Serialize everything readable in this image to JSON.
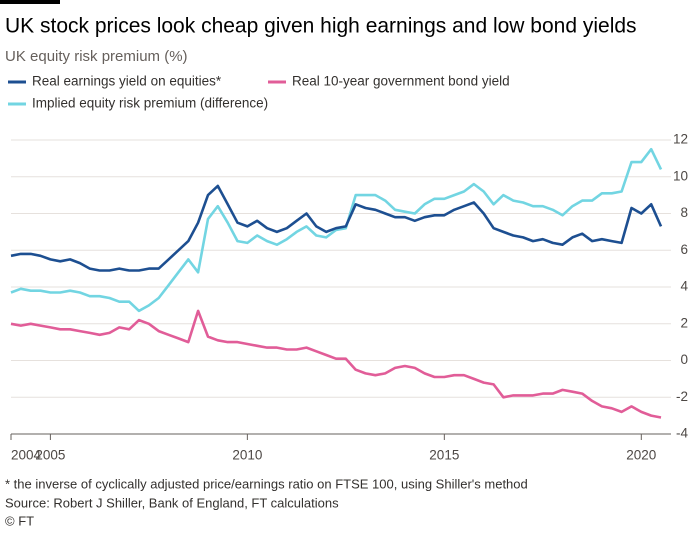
{
  "chart_data": {
    "type": "line",
    "title": "UK stock prices look cheap given high earnings and low bond yields",
    "subtitle": "UK equity risk premium (%)",
    "footnote": "* the inverse of cyclically adjusted price/earnings ratio on FTSE 100, using Shiller's method",
    "source": "Source: Robert J Shiller, Bank of England, FT calculations",
    "credit": "© FT",
    "legend": "top-left",
    "grid": true,
    "xlim": [
      2004,
      2020.5
    ],
    "xticks": [
      2004,
      2005,
      2010,
      2015,
      2020
    ],
    "ylim": [
      -4,
      12
    ],
    "yticks": [
      -4,
      -2,
      0,
      2,
      4,
      6,
      8,
      10,
      12
    ],
    "x": [
      2004,
      2004.25,
      2004.5,
      2004.75,
      2005,
      2005.25,
      2005.5,
      2005.75,
      2006,
      2006.25,
      2006.5,
      2006.75,
      2007,
      2007.25,
      2007.5,
      2007.75,
      2008,
      2008.25,
      2008.5,
      2008.75,
      2009,
      2009.25,
      2009.5,
      2009.75,
      2010,
      2010.25,
      2010.5,
      2010.75,
      2011,
      2011.25,
      2011.5,
      2011.75,
      2012,
      2012.25,
      2012.5,
      2012.75,
      2013,
      2013.25,
      2013.5,
      2013.75,
      2014,
      2014.25,
      2014.5,
      2014.75,
      2015,
      2015.25,
      2015.5,
      2015.75,
      2016,
      2016.25,
      2016.5,
      2016.75,
      2017,
      2017.25,
      2017.5,
      2017.75,
      2018,
      2018.25,
      2018.5,
      2018.75,
      2019,
      2019.25,
      2019.5,
      2019.75,
      2020,
      2020.25,
      2020.5
    ],
    "series": [
      {
        "name": "Real earnings yield on equities*",
        "color": "#1d4f91",
        "values": [
          5.7,
          5.8,
          5.8,
          5.7,
          5.5,
          5.4,
          5.5,
          5.3,
          5.0,
          4.9,
          4.9,
          5.0,
          4.9,
          4.9,
          5.0,
          5.0,
          5.5,
          6.0,
          6.5,
          7.5,
          9.0,
          9.5,
          8.5,
          7.5,
          7.3,
          7.6,
          7.2,
          7.0,
          7.2,
          7.6,
          8.0,
          7.3,
          7.0,
          7.2,
          7.3,
          8.5,
          8.3,
          8.2,
          8.0,
          7.8,
          7.8,
          7.6,
          7.8,
          7.9,
          7.9,
          8.2,
          8.4,
          8.6,
          8.0,
          7.2,
          7.0,
          6.8,
          6.7,
          6.5,
          6.6,
          6.4,
          6.3,
          6.7,
          6.9,
          6.5,
          6.6,
          6.5,
          6.4,
          8.3,
          8.0,
          8.5,
          7.3
        ]
      },
      {
        "name": "Real 10-year government bond yield",
        "color": "#e15d98",
        "values": [
          2.0,
          1.9,
          2.0,
          1.9,
          1.8,
          1.7,
          1.7,
          1.6,
          1.5,
          1.4,
          1.5,
          1.8,
          1.7,
          2.2,
          2.0,
          1.6,
          1.4,
          1.2,
          1.0,
          2.7,
          1.3,
          1.1,
          1.0,
          1.0,
          0.9,
          0.8,
          0.7,
          0.7,
          0.6,
          0.6,
          0.7,
          0.5,
          0.3,
          0.1,
          0.1,
          -0.5,
          -0.7,
          -0.8,
          -0.7,
          -0.4,
          -0.3,
          -0.4,
          -0.7,
          -0.9,
          -0.9,
          -0.8,
          -0.8,
          -1.0,
          -1.2,
          -1.3,
          -2.0,
          -1.9,
          -1.9,
          -1.9,
          -1.8,
          -1.8,
          -1.6,
          -1.7,
          -1.8,
          -2.2,
          -2.5,
          -2.6,
          -2.8,
          -2.5,
          -2.8,
          -3.0,
          -3.1
        ]
      },
      {
        "name": "Implied equity risk premium (difference)",
        "color": "#72d5e2",
        "values": [
          3.7,
          3.9,
          3.8,
          3.8,
          3.7,
          3.7,
          3.8,
          3.7,
          3.5,
          3.5,
          3.4,
          3.2,
          3.2,
          2.7,
          3.0,
          3.4,
          4.1,
          4.8,
          5.5,
          4.8,
          7.7,
          8.4,
          7.5,
          6.5,
          6.4,
          6.8,
          6.5,
          6.3,
          6.6,
          7.0,
          7.3,
          6.8,
          6.7,
          7.1,
          7.2,
          9.0,
          9.0,
          9.0,
          8.7,
          8.2,
          8.1,
          8.0,
          8.5,
          8.8,
          8.8,
          9.0,
          9.2,
          9.6,
          9.2,
          8.5,
          9.0,
          8.7,
          8.6,
          8.4,
          8.4,
          8.2,
          7.9,
          8.4,
          8.7,
          8.7,
          9.1,
          9.1,
          9.2,
          10.8,
          10.8,
          11.5,
          10.4
        ]
      }
    ]
  }
}
